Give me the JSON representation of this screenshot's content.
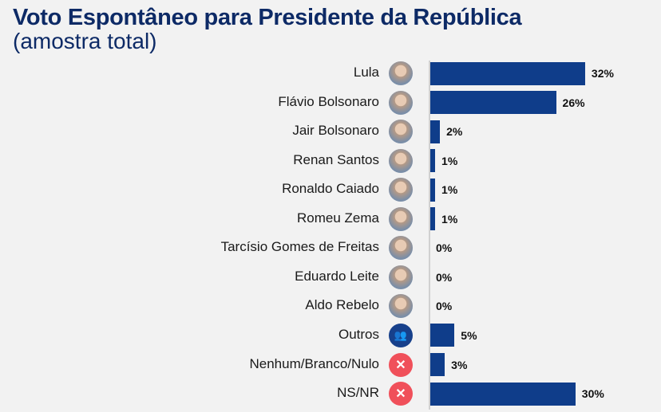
{
  "chart_data": {
    "type": "bar",
    "orientation": "horizontal",
    "title": "Voto Espontâneo para Presidente da República",
    "subtitle": "(amostra total)",
    "categories": [
      "Lula",
      "Flávio Bolsonaro",
      "Jair Bolsonaro",
      "Renan Santos",
      "Ronaldo Caiado",
      "Romeu Zema",
      "Tarcísio Gomes de Freitas",
      "Eduardo Leite",
      "Aldo Rebelo",
      "Outros",
      "Nenhum/Branco/Nulo",
      "NS/NR"
    ],
    "values": [
      32,
      26,
      2,
      1,
      1,
      1,
      0,
      0,
      0,
      5,
      3,
      30
    ],
    "labels": [
      "32%",
      "26%",
      "2%",
      "1%",
      "1%",
      "1%",
      "0%",
      "0%",
      "0%",
      "5%",
      "3%",
      "30%"
    ],
    "icons": [
      "photo",
      "photo",
      "photo",
      "photo",
      "photo",
      "photo",
      "photo",
      "photo",
      "photo",
      "people-icon",
      "x-icon",
      "x-icon"
    ],
    "xlim": [
      0,
      40
    ],
    "colors": {
      "bar": "#0f3d8a",
      "title": "#0d2a66",
      "x": "#f0505a",
      "people": "#17408b",
      "photo": "#b59a86"
    }
  }
}
